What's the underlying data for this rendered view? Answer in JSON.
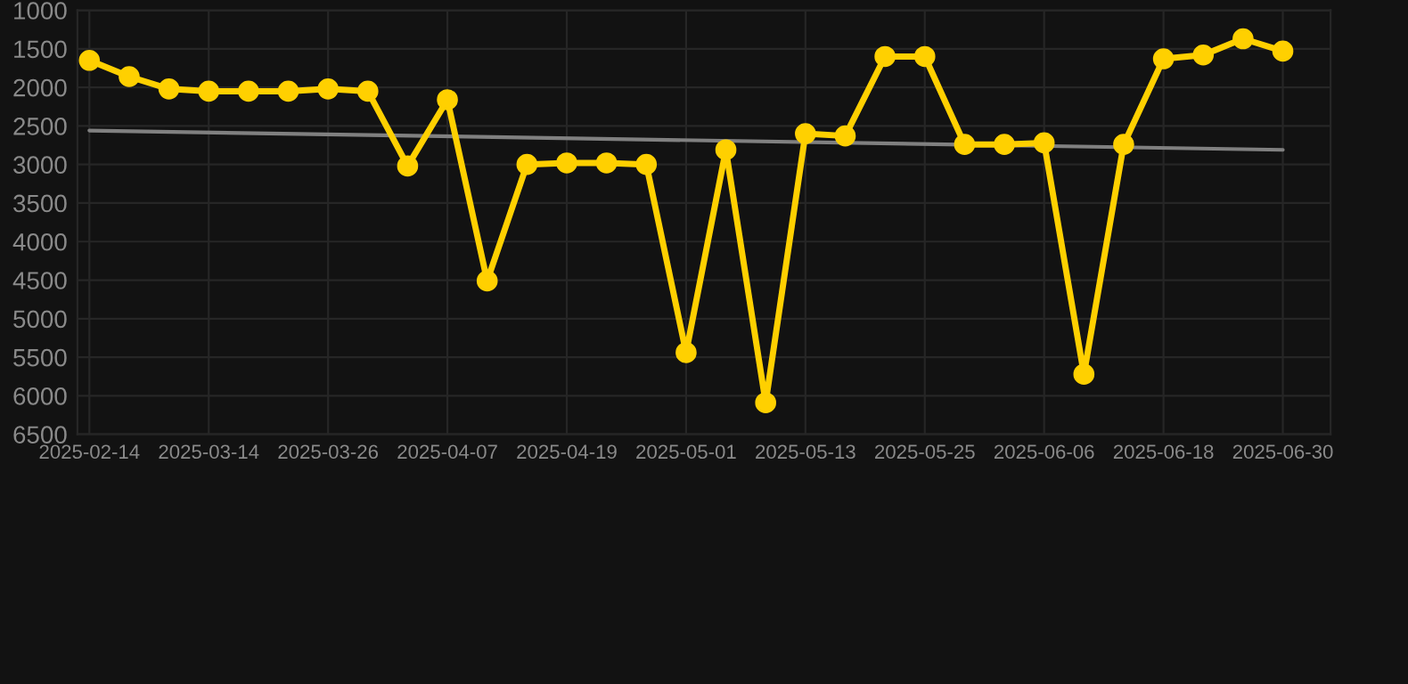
{
  "chart_data": {
    "type": "line",
    "categories": [
      "2025-02-14",
      null,
      null,
      "2025-03-14",
      null,
      null,
      "2025-03-26",
      null,
      null,
      "2025-04-07",
      null,
      null,
      "2025-04-19",
      null,
      null,
      "2025-05-01",
      null,
      null,
      "2025-05-13",
      null,
      null,
      "2025-05-25",
      null,
      null,
      "2025-06-06",
      null,
      null,
      "2025-06-18",
      null,
      null,
      "2025-06-30"
    ],
    "series": [
      {
        "color": "#ffd000",
        "marker": "circle",
        "values": [
          1650,
          1860,
          2020,
          2050,
          2050,
          2050,
          2020,
          2050,
          3020,
          2160,
          4510,
          3000,
          2980,
          2980,
          3000,
          5440,
          2810,
          6090,
          2600,
          2630,
          1600,
          1600,
          2740,
          2740,
          2720,
          5720,
          2740,
          1630,
          1580,
          1370,
          1530
        ]
      },
      {
        "type": "line",
        "color": "#808080",
        "marker": "none",
        "values": [
          2560,
          null,
          null,
          null,
          null,
          null,
          null,
          null,
          null,
          null,
          null,
          null,
          null,
          null,
          null,
          null,
          null,
          null,
          null,
          null,
          null,
          null,
          null,
          null,
          null,
          null,
          null,
          null,
          null,
          null,
          2810
        ]
      }
    ],
    "ylim": [
      6500,
      1000
    ],
    "yticks": [
      1000,
      1500,
      2000,
      2500,
      3000,
      3500,
      4000,
      4500,
      5000,
      5500,
      6000,
      6500
    ],
    "grid": true
  }
}
